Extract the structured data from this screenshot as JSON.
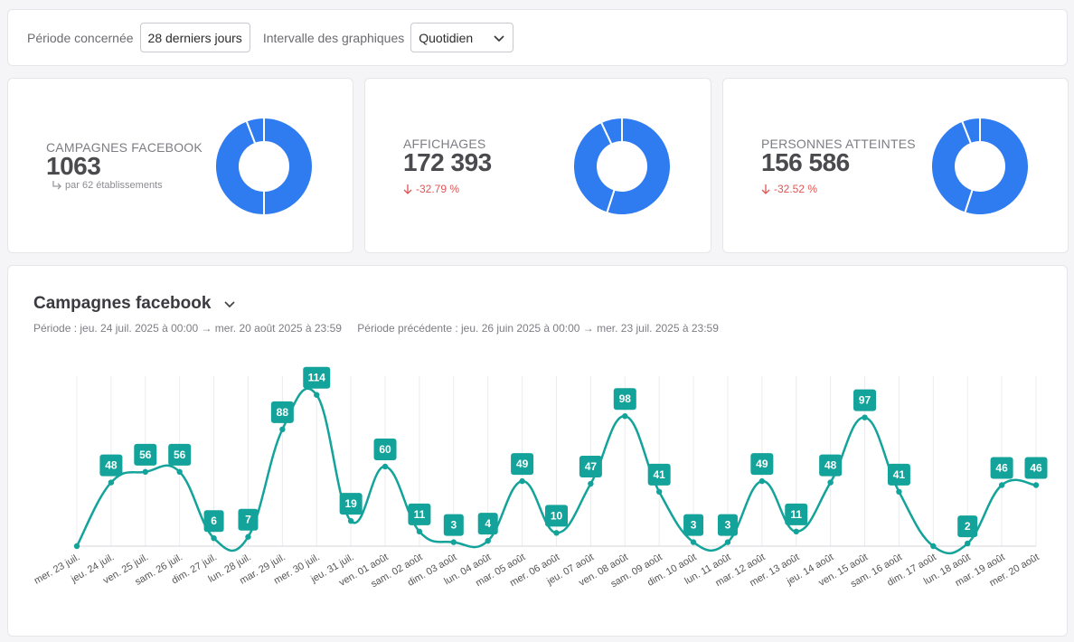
{
  "filters": {
    "period_label": "Période concernée",
    "period_value": "28 derniers jours",
    "interval_label": "Intervalle des graphiques",
    "interval_value": "Quotidien"
  },
  "kpis": [
    {
      "title": "CAMPAGNES FACEBOOK",
      "value": "1063",
      "sub": "par 62 établissements",
      "donut_fraction": 0.87
    },
    {
      "title": "AFFICHAGES",
      "value": "172 393",
      "delta": "-32.79 %",
      "donut_fraction": 0.93
    },
    {
      "title": "PERSONNES ATTEINTES",
      "value": "156 586",
      "delta": "-32.52 %",
      "donut_fraction": 0.94
    }
  ],
  "colors": {
    "donut": "#2f7bf0",
    "line": "#13a39a",
    "delta": "#e05656"
  },
  "chart": {
    "title": "Campagnes facebook",
    "period_text": "Période :  jeu. 24 juil. 2025 à 00:00 → mer. 20 août 2025 à 23:59",
    "previous_period_text": "Période précédente :  jeu. 26 juin 2025 à 00:00 → mer. 23 juil. 2025 à 23:59"
  },
  "chart_data": {
    "type": "line",
    "x": [
      "mer. 23 juil.",
      "jeu. 24 juil.",
      "ven. 25 juil.",
      "sam. 26 juil.",
      "dim. 27 juil.",
      "lun. 28 juil.",
      "mar. 29 juil.",
      "mer. 30 juil.",
      "jeu. 31 juil.",
      "ven. 01 août",
      "sam. 02 août",
      "dim. 03 août",
      "lun. 04 août",
      "mar. 05 août",
      "mer. 06 août",
      "jeu. 07 août",
      "ven. 08 août",
      "sam. 09 août",
      "dim. 10 août",
      "lun. 11 août",
      "mar. 12 août",
      "mer. 13 août",
      "jeu. 14 août",
      "ven. 15 août",
      "sam. 16 août",
      "dim. 17 août",
      "lun. 18 août",
      "mar. 19 août",
      "mer. 20 août"
    ],
    "series": [
      {
        "values": [
          0,
          48,
          56,
          56,
          6,
          7,
          88,
          114,
          19,
          60,
          11,
          3,
          4,
          49,
          10,
          47,
          98,
          41,
          3,
          3,
          49,
          11,
          48,
          97,
          41,
          0,
          2,
          46,
          46
        ],
        "labels_shown": [
          false,
          true,
          true,
          true,
          true,
          true,
          true,
          true,
          true,
          true,
          true,
          true,
          true,
          true,
          true,
          true,
          true,
          true,
          true,
          true,
          true,
          true,
          true,
          true,
          true,
          false,
          true,
          true,
          true
        ]
      }
    ],
    "ylim": [
      0,
      122
    ],
    "grid": "vertical"
  }
}
